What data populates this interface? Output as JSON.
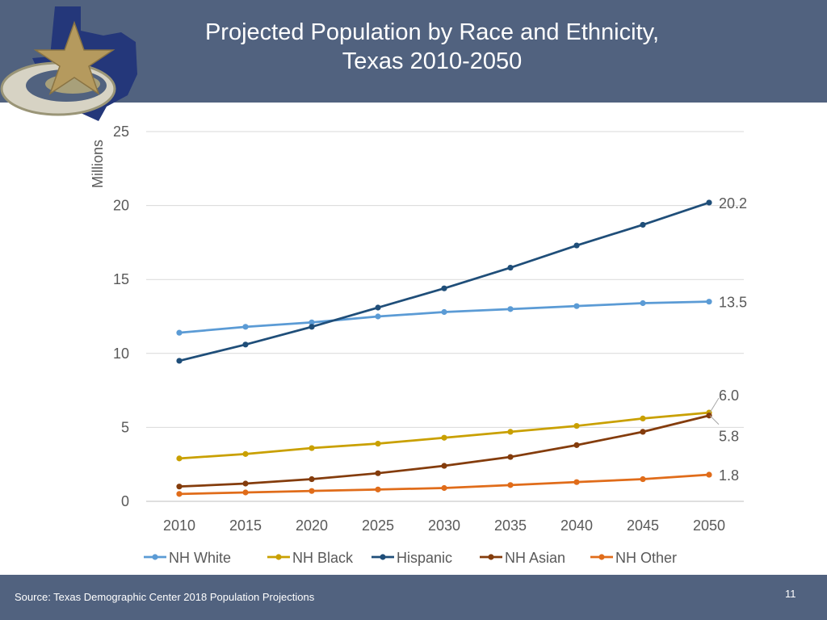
{
  "header": {
    "title_line1": "Projected Population by Race and Ethnicity,",
    "title_line2": "Texas 2010-2050"
  },
  "footer": {
    "source": "Source: Texas Demographic Center 2018 Population Projections",
    "page_number": "11"
  },
  "colors": {
    "header_bg": "#51627f",
    "nh_white": "#5b9bd5",
    "nh_black": "#c9a000",
    "hispanic": "#1f4e79",
    "nh_asian": "#843c0c",
    "nh_other": "#e06c1a"
  },
  "chart_data": {
    "type": "line",
    "ylabel": "Millions",
    "ylim": [
      0,
      25
    ],
    "yticks": [
      0,
      5,
      10,
      15,
      20,
      25
    ],
    "grid": true,
    "legend_position": "bottom",
    "categories": [
      "2010",
      "2015",
      "2020",
      "2025",
      "2030",
      "2035",
      "2040",
      "2045",
      "2050"
    ],
    "series": [
      {
        "name": "NH White",
        "color": "#5b9bd5",
        "values": [
          11.4,
          11.8,
          12.1,
          12.5,
          12.8,
          13.0,
          13.2,
          13.4,
          13.5
        ],
        "end_label": "13.5"
      },
      {
        "name": "NH Black",
        "color": "#c9a000",
        "values": [
          2.9,
          3.2,
          3.6,
          3.9,
          4.3,
          4.7,
          5.1,
          5.6,
          6.0
        ],
        "end_label": "6.0"
      },
      {
        "name": "Hispanic",
        "color": "#1f4e79",
        "values": [
          9.5,
          10.6,
          11.8,
          13.1,
          14.4,
          15.8,
          17.3,
          18.7,
          20.2
        ],
        "end_label": "20.2"
      },
      {
        "name": "NH Asian",
        "color": "#843c0c",
        "values": [
          1.0,
          1.2,
          1.5,
          1.9,
          2.4,
          3.0,
          3.8,
          4.7,
          5.8
        ],
        "end_label": "5.8"
      },
      {
        "name": "NH Other",
        "color": "#e06c1a",
        "values": [
          0.5,
          0.6,
          0.7,
          0.8,
          0.9,
          1.1,
          1.3,
          1.5,
          1.8
        ],
        "end_label": "1.8"
      }
    ]
  }
}
